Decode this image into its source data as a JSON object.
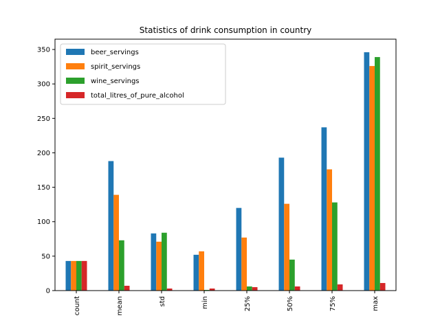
{
  "chart_data": {
    "type": "bar",
    "title": "Statistics of drink consumption in country",
    "xlabel": "",
    "ylabel": "",
    "categories": [
      "count",
      "mean",
      "std",
      "min",
      "25%",
      "50%",
      "75%",
      "max"
    ],
    "ylim": [
      0,
      365
    ],
    "yticks": [
      0,
      50,
      100,
      150,
      200,
      250,
      300,
      350
    ],
    "grid": false,
    "legend_position": "top-left",
    "series": [
      {
        "name": "beer_servings",
        "color": "#1f77b4",
        "values": [
          43,
          188,
          83,
          52,
          120,
          193,
          237,
          346
        ]
      },
      {
        "name": "spirit_servings",
        "color": "#ff7f0e",
        "values": [
          43,
          139,
          71,
          57,
          77,
          126,
          176,
          326
        ]
      },
      {
        "name": "wine_servings",
        "color": "#2ca02c",
        "values": [
          43,
          73,
          84,
          1,
          6,
          45,
          128,
          339
        ]
      },
      {
        "name": "total_litres_of_pure_alcohol",
        "color": "#d62728",
        "values": [
          43,
          7,
          3,
          3,
          5,
          6,
          9,
          11
        ]
      }
    ]
  }
}
